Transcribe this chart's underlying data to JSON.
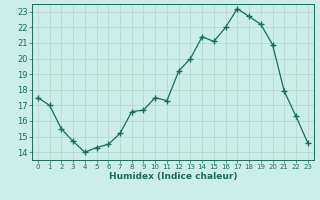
{
  "x": [
    0,
    1,
    2,
    3,
    4,
    5,
    6,
    7,
    8,
    9,
    10,
    11,
    12,
    13,
    14,
    15,
    16,
    17,
    18,
    19,
    20,
    21,
    22,
    23
  ],
  "y": [
    17.5,
    17.0,
    15.5,
    14.7,
    14.0,
    14.3,
    14.5,
    15.2,
    16.6,
    16.7,
    17.5,
    17.3,
    19.2,
    20.0,
    21.4,
    21.1,
    22.0,
    23.2,
    22.7,
    22.2,
    20.9,
    17.9,
    16.3,
    14.6
  ],
  "line_color": "#1a6b5a",
  "marker": "+",
  "marker_size": 4,
  "bg_color": "#cceee8",
  "grid_color": "#b8d8d2",
  "xlabel": "Humidex (Indice chaleur)",
  "xlim": [
    -0.5,
    23.5
  ],
  "ylim": [
    13.5,
    23.5
  ],
  "yticks": [
    14,
    15,
    16,
    17,
    18,
    19,
    20,
    21,
    22,
    23
  ],
  "xticks": [
    0,
    1,
    2,
    3,
    4,
    5,
    6,
    7,
    8,
    9,
    10,
    11,
    12,
    13,
    14,
    15,
    16,
    17,
    18,
    19,
    20,
    21,
    22,
    23
  ]
}
